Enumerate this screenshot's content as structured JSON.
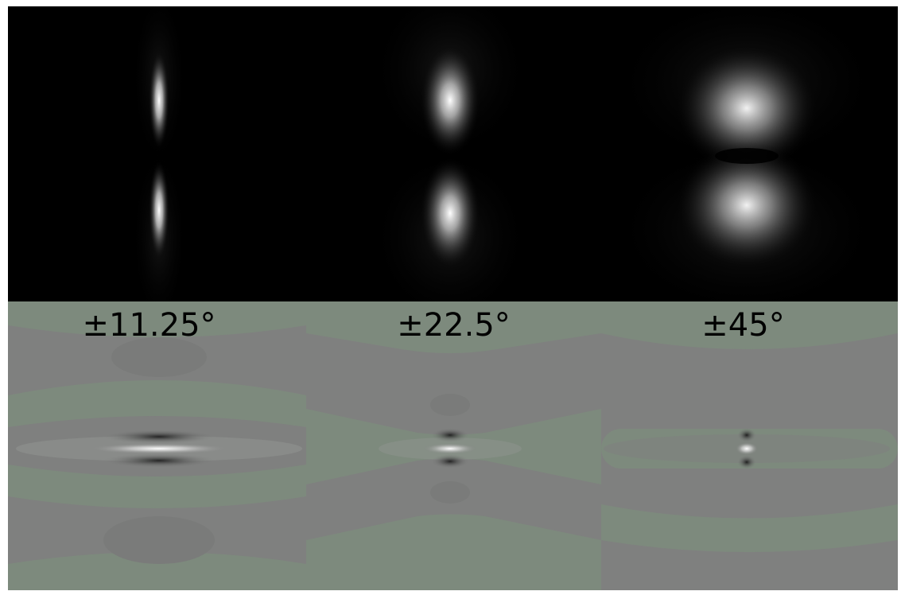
{
  "panels": [
    {
      "label": "±11.25°"
    },
    {
      "label": "±22.5°"
    },
    {
      "label": "±45°"
    }
  ],
  "colors": {
    "top_background": "#000000",
    "bottom_background": "#7f807f",
    "bottom_tint": "#7d8a7d",
    "label_text": "#000000"
  }
}
